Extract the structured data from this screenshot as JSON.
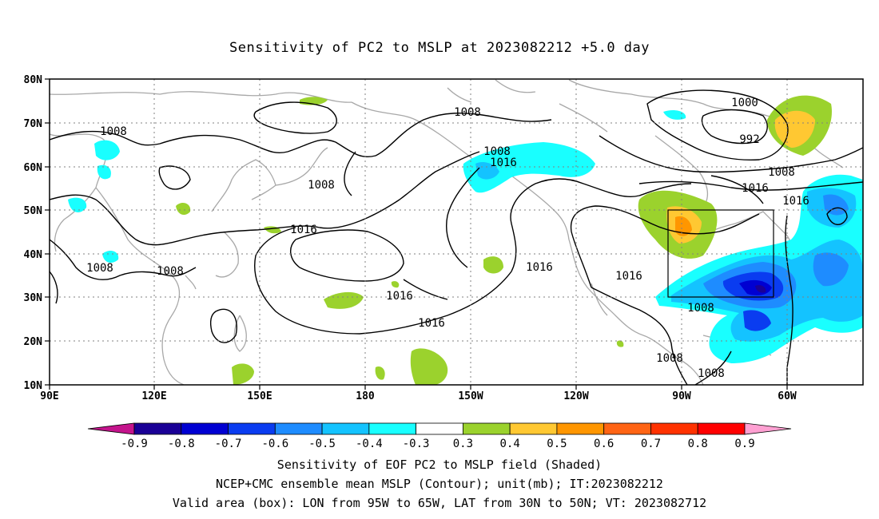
{
  "title": "Sensitivity of PC2 to MSLP at 2023082212 +5.0 day",
  "map": {
    "lat_labels": [
      "80N",
      "70N",
      "60N",
      "50N",
      "40N",
      "30N",
      "20N",
      "10N"
    ],
    "lon_labels": [
      "90E",
      "120E",
      "150E",
      "180",
      "150W",
      "120W",
      "90W",
      "60W"
    ],
    "contour_labels": [
      "1008",
      "1008",
      "1008",
      "1008",
      "1008",
      "1008",
      "1008",
      "1008",
      "1008",
      "1016",
      "1016",
      "1016",
      "1016",
      "1016",
      "1016",
      "1016",
      "1016",
      "1000",
      "992"
    ],
    "box_label": "valid area box"
  },
  "colorbar": {
    "labels": [
      "-0.9",
      "-0.8",
      "-0.7",
      "-0.6",
      "-0.5",
      "-0.4",
      "-0.3",
      "0.3",
      "0.4",
      "0.5",
      "0.6",
      "0.7",
      "0.8",
      "0.9"
    ],
    "colors": [
      "#c4148c",
      "#1a0096",
      "#0000d2",
      "#0a3cf0",
      "#1e8cff",
      "#14c3ff",
      "#19ffff",
      "#ffffff",
      "#9bd22d",
      "#ffc832",
      "#ff9600",
      "#ff6414",
      "#ff3200",
      "#ff0000",
      "#ffa0d2"
    ]
  },
  "captions": {
    "line1": "Sensitivity of EOF PC2 to MSLP field (Shaded)",
    "line2": "NCEP+CMC ensemble mean MSLP (Contour); unit(mb); IT:2023082212",
    "line3": "Valid area (box): LON from 95W to 65W, LAT from 30N to 50N; VT: 2023082712"
  }
}
